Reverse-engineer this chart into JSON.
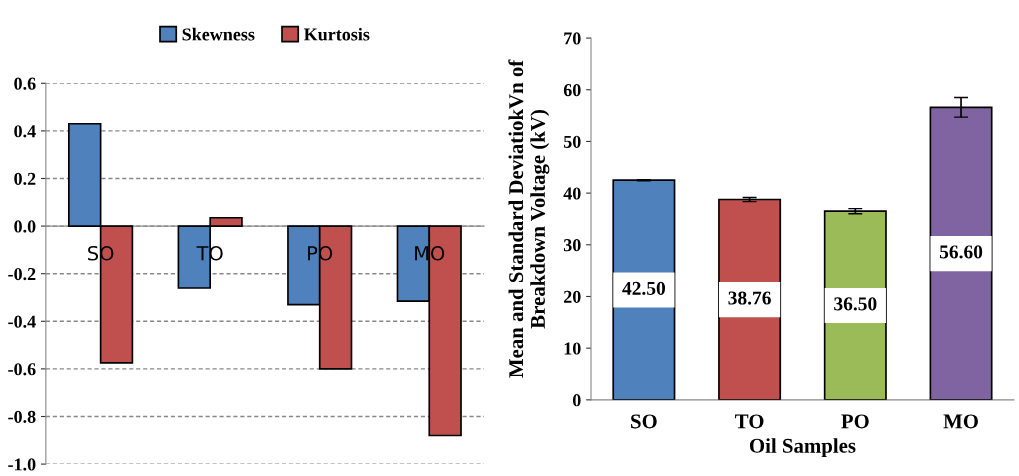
{
  "chart_data": [
    {
      "type": "bar",
      "categories": [
        "SO",
        "TO",
        "PO",
        "MO"
      ],
      "series": [
        {
          "name": "Skewness",
          "color": "#4f81bd",
          "values": [
            0.43,
            -0.26,
            -0.33,
            -0.315
          ]
        },
        {
          "name": "Kurtosis",
          "color": "#c0504d",
          "values": [
            -0.575,
            0.035,
            -0.6,
            -0.88
          ]
        }
      ],
      "ylim": [
        -1.0,
        0.6
      ],
      "yticks": [
        {
          "value": -1.0,
          "label": "-1.0"
        },
        {
          "value": -0.8,
          "label": "-0.8"
        },
        {
          "value": -0.6,
          "label": "-0.6"
        },
        {
          "value": -0.4,
          "label": "-0.4"
        },
        {
          "value": -0.2,
          "label": "-0.2"
        },
        {
          "value": 0,
          "label": "0.0"
        },
        {
          "value": 0.2,
          "label": "0.2"
        },
        {
          "value": 0.4,
          "label": "0.4"
        },
        {
          "value": 0.6,
          "label": "0.6"
        }
      ],
      "grid": "y",
      "legend": "top"
    },
    {
      "type": "bar",
      "categories": [
        "SO",
        "TO",
        "PO",
        "MO"
      ],
      "values": [
        42.5,
        38.76,
        36.5,
        56.6
      ],
      "colors": [
        "#4f81bd",
        "#c0504d",
        "#9bbb59",
        "#8064a2"
      ],
      "errors": [
        0.1,
        0.4,
        0.5,
        1.9
      ],
      "value_labels": [
        "42.50",
        "38.76",
        "36.50",
        "56.60"
      ],
      "xlabel": "Oil Samples",
      "ylabel": "Mean and Standard DeviatiokVn of\nBreakdown Voltage (kV)",
      "ylim": [
        0,
        70
      ],
      "yticks": [
        0,
        10,
        20,
        30,
        40,
        50,
        60,
        70
      ],
      "grid": false
    }
  ]
}
